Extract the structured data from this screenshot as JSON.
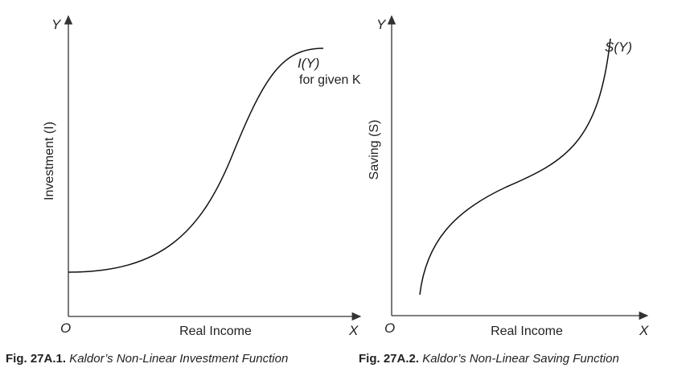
{
  "left_figure": {
    "y_axis_symbol": "Y",
    "origin": "O",
    "x_axis_symbol": "X",
    "x_axis_label": "Real Income",
    "y_axis_label": "Investment (I)",
    "curve_label": "I(Y)",
    "curve_note": "for given K",
    "caption": {
      "number": "Fig. 27A.1.",
      "title": "Kaldor’s Non-Linear Investment Function"
    }
  },
  "right_figure": {
    "y_axis_symbol": "Y",
    "origin": "O",
    "x_axis_symbol": "X",
    "x_axis_label": "Real Income",
    "y_axis_label": "Saving (S)",
    "curve_label": "S(Y)",
    "caption": {
      "number": "Fig. 27A.2.",
      "title": "Kaldor’s Non-Linear Saving Function"
    }
  }
}
